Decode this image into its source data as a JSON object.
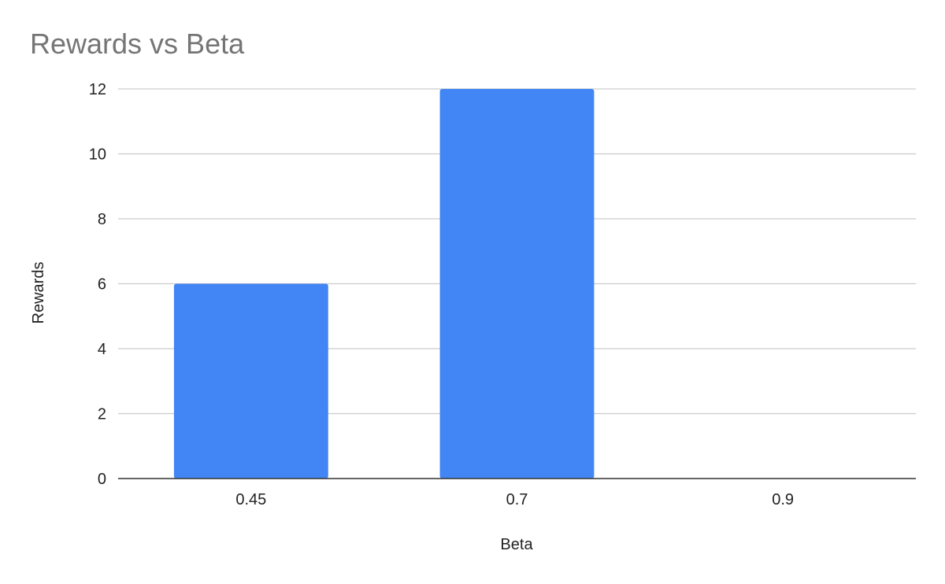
{
  "chart_data": {
    "type": "bar",
    "title": "Rewards vs Beta",
    "xlabel": "Beta",
    "ylabel": "Rewards",
    "categories": [
      "0.45",
      "0.7",
      "0.9"
    ],
    "series": [
      {
        "values": [
          6,
          12,
          0
        ]
      }
    ],
    "ylim": [
      0,
      12
    ],
    "yticks": [
      0,
      2,
      4,
      6,
      8,
      10,
      12
    ],
    "grid": true,
    "legend": "none",
    "colors": {
      "bar": "#4285f4",
      "title": "#757575",
      "grid": "#cccccc",
      "axis": "#333333"
    }
  }
}
